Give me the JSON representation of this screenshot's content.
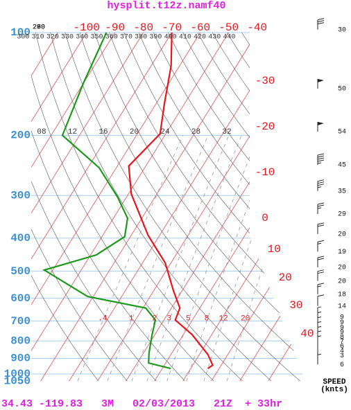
{
  "chart_data": {
    "type": "skewt",
    "title": "hysplit.t12z.namf40",
    "footer": "34.43 -119.83   3M   02/03/2013   21Z  + 33hr",
    "speed_title": "SPEED",
    "speed_unit": "(knts)",
    "log_y": true,
    "ylim": [
      1050,
      100
    ],
    "yticks": [
      100,
      200,
      300,
      400,
      500,
      600,
      700,
      800,
      900,
      1000,
      1050
    ],
    "xticks": [
      -100,
      -90,
      -80,
      -70,
      -60,
      -50,
      -40,
      -30,
      -20,
      -10,
      0,
      10,
      20,
      30,
      40
    ],
    "dry_adiabats": [
      250,
      260,
      270,
      280,
      290,
      300,
      310,
      320,
      330,
      340,
      350,
      360,
      370,
      380,
      390,
      400,
      410,
      420,
      430,
      440
    ],
    "mixing_ratios": [
      {
        "value": 0.4,
        "label": ".4"
      },
      1,
      2,
      3,
      5,
      8,
      12,
      20
    ],
    "thickness_labels": [
      "08",
      "12",
      "16",
      "20",
      "24",
      "28",
      "32"
    ],
    "series": [
      {
        "color": "#e8141c",
        "pressure": [
          100,
          125,
          162,
          198,
          246,
          297,
          393,
          473,
          571,
          641,
          695,
          766,
          877,
          942,
          964
        ],
        "values": [
          -70,
          -63,
          -57,
          -52,
          -56,
          -49,
          -34,
          -22,
          -13,
          -7,
          -6,
          3,
          13,
          17,
          16
        ]
      },
      {
        "color": "#1a9a1a",
        "pressure": [
          100,
          141,
          200,
          249,
          304,
          350,
          396,
          448,
          496,
          593,
          641,
          695,
          766,
          869,
          929,
          964
        ],
        "values": [
          -93,
          -90,
          -86,
          -66,
          -53,
          -45,
          -42,
          -48,
          -63,
          -42,
          -19,
          -13,
          -11,
          -8,
          -6,
          3
        ]
      }
    ],
    "wind": {
      "pressure": [
        98,
        146,
        195,
        244,
        291,
        340,
        389,
        438,
        487,
        534,
        584,
        632,
        682,
        706,
        730,
        754,
        779,
        803,
        829,
        855,
        882,
        938
      ],
      "speed": [
        30,
        50,
        54,
        45,
        35,
        29,
        20,
        19,
        20,
        20,
        18,
        14,
        9,
        9,
        9,
        9,
        8,
        7,
        6,
        4,
        3,
        6
      ]
    }
  }
}
